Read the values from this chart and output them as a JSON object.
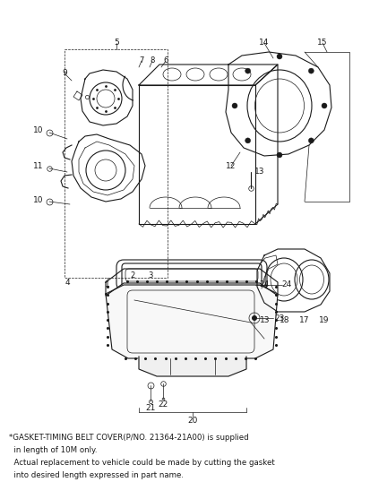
{
  "bg_color": "#ffffff",
  "line_color": "#1a1a1a",
  "text_color": "#1a1a1a",
  "footnote_line1": "*GASKET-TIMING BELT COVER(P/NO. 21364-21A00) is supplied",
  "footnote_line2": "  in length of 10M only.",
  "footnote_line3": "  Actual replacement to vehicle could be made by cutting the gasket",
  "footnote_line4": "  into desired length expressed in part name.",
  "figsize": [
    4.14,
    5.38
  ],
  "dpi": 100
}
